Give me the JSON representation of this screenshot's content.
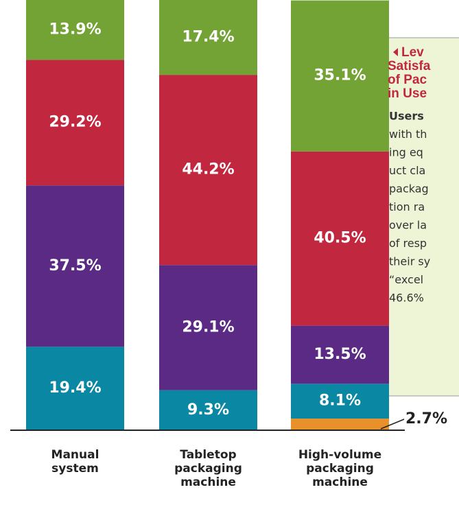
{
  "chart_data": {
    "type": "stacked_bar",
    "categories": [
      [
        "Manual",
        "system"
      ],
      [
        "Tabletop",
        "packaging",
        "machine"
      ],
      [
        "High-volume",
        "packaging",
        "machine"
      ]
    ],
    "series": [
      {
        "color": "#e8902a",
        "values": [
          null,
          null,
          2.7
        ],
        "value_labels": [
          null,
          null,
          "2.7%"
        ]
      },
      {
        "color": "#0a87a3",
        "values": [
          19.4,
          9.3,
          8.1
        ],
        "value_labels": [
          "19.4%",
          "9.3%",
          "8.1%"
        ]
      },
      {
        "color": "#5b2a85",
        "values": [
          37.5,
          29.1,
          13.5
        ],
        "value_labels": [
          "37.5%",
          "29.1%",
          "13.5%"
        ]
      },
      {
        "color": "#c12840",
        "values": [
          29.2,
          44.2,
          40.5
        ],
        "value_labels": [
          "29.2%",
          "44.2%",
          "40.5%"
        ]
      },
      {
        "color": "#72a334",
        "values": [
          13.9,
          17.4,
          35.1
        ],
        "value_labels": [
          "13.9%",
          "17.4%",
          "35.1%"
        ]
      }
    ],
    "sidebar": {
      "title_lines": [
        "Lev",
        "Satisfa",
        "of Pac",
        "in Use"
      ],
      "body_lines": [
        "Users",
        "with th",
        "ing eq",
        "uct cla",
        "packag",
        "tion ra",
        "over la",
        "of resp",
        "their sy",
        "“excel",
        "46.6%"
      ]
    }
  }
}
